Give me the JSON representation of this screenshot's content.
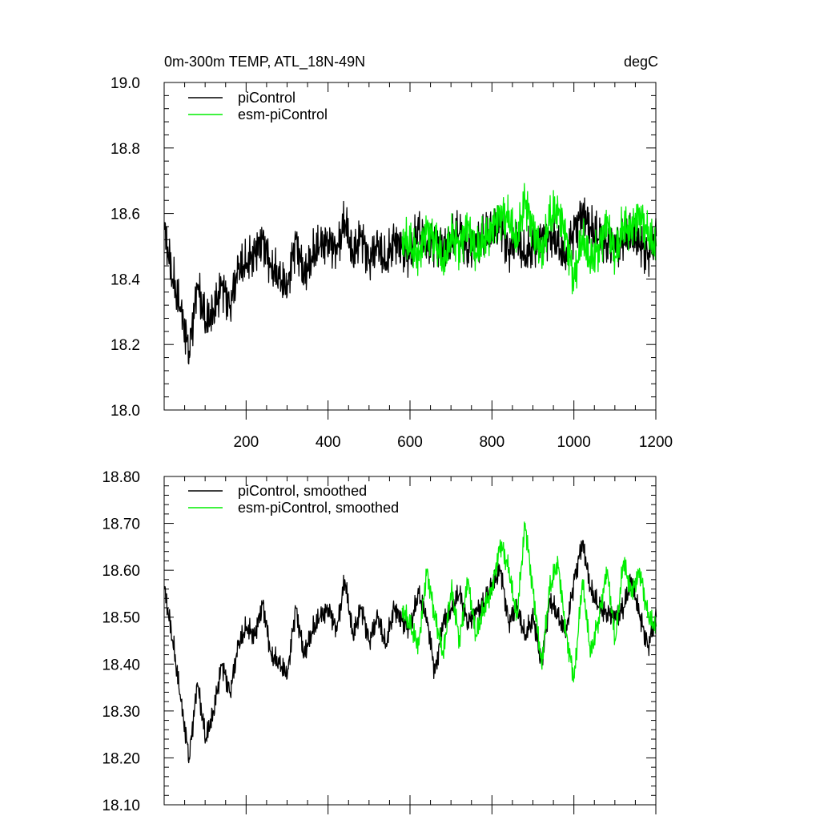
{
  "colors": {
    "control": "#000000",
    "esm": "#00ee00",
    "axis": "#000000",
    "background": "#ffffff"
  },
  "chart_data": [
    {
      "type": "line",
      "title": "0m-300m TEMP, ATL_18N-49N",
      "units": "degC",
      "xlabel": "",
      "ylabel": "",
      "xlim": [
        0,
        1200
      ],
      "ylim": [
        18.0,
        19.0
      ],
      "xticks": [
        200,
        400,
        600,
        800,
        1000,
        1200
      ],
      "yticks": [
        "18.0",
        "18.2",
        "18.4",
        "18.6",
        "18.8",
        "19.0"
      ],
      "legend_position": "top-left",
      "series": [
        {
          "name": "piControl",
          "color": "#000000",
          "x_start": 1,
          "x_step": 20,
          "values": [
            18.55,
            18.4,
            18.3,
            18.18,
            18.38,
            18.27,
            18.3,
            18.38,
            18.32,
            18.43,
            18.45,
            18.48,
            18.52,
            18.44,
            18.4,
            18.38,
            18.52,
            18.41,
            18.47,
            18.5,
            18.52,
            18.48,
            18.58,
            18.47,
            18.53,
            18.46,
            18.5,
            18.45,
            18.52,
            18.49,
            18.48,
            18.55,
            18.5,
            18.52,
            18.49,
            18.52,
            18.54,
            18.49,
            18.51,
            18.53,
            18.55,
            18.56,
            18.49,
            18.52,
            18.47,
            18.5,
            18.52,
            18.54,
            18.5,
            18.47,
            18.55,
            18.6,
            18.56,
            18.52,
            18.51,
            18.5,
            18.52,
            18.54,
            18.5,
            18.48,
            18.53
          ]
        },
        {
          "name": "esm-piControl",
          "color": "#00ee00",
          "x_start": 581,
          "x_step": 20,
          "values": [
            18.53,
            18.5,
            18.47,
            18.55,
            18.52,
            18.45,
            18.53,
            18.5,
            18.56,
            18.48,
            18.52,
            18.55,
            18.6,
            18.58,
            18.52,
            18.64,
            18.55,
            18.48,
            18.58,
            18.62,
            18.52,
            18.4,
            18.53,
            18.45,
            18.5,
            18.57,
            18.47,
            18.56,
            18.55,
            18.6,
            18.53,
            18.5
          ]
        }
      ]
    },
    {
      "type": "line",
      "title": "",
      "xlabel": "",
      "ylabel": "",
      "xlim": [
        0,
        1200
      ],
      "ylim": [
        18.1,
        18.8
      ],
      "yticks": [
        "18.10",
        "18.20",
        "18.30",
        "18.40",
        "18.50",
        "18.60",
        "18.70",
        "18.80"
      ],
      "legend_position": "top-left",
      "series": [
        {
          "name": "piControl, smoothed",
          "color": "#000000",
          "x_start": 1,
          "x_step": 20,
          "values": [
            18.56,
            18.45,
            18.32,
            18.2,
            18.36,
            18.24,
            18.3,
            18.4,
            18.34,
            18.44,
            18.48,
            18.46,
            18.53,
            18.42,
            18.4,
            18.38,
            18.52,
            18.42,
            18.47,
            18.5,
            18.52,
            18.47,
            18.58,
            18.46,
            18.52,
            18.45,
            18.5,
            18.44,
            18.52,
            18.49,
            18.48,
            18.55,
            18.5,
            18.38,
            18.49,
            18.52,
            18.55,
            18.49,
            18.51,
            18.53,
            18.57,
            18.6,
            18.49,
            18.52,
            18.46,
            18.5,
            18.4,
            18.54,
            18.5,
            18.47,
            18.58,
            18.66,
            18.56,
            18.52,
            18.51,
            18.5,
            18.52,
            18.58,
            18.5,
            18.44,
            18.5
          ]
        },
        {
          "name": "esm-piControl, smoothed",
          "color": "#00ee00",
          "x_start": 581,
          "x_step": 20,
          "values": [
            18.52,
            18.48,
            18.44,
            18.6,
            18.5,
            18.42,
            18.56,
            18.45,
            18.58,
            18.46,
            18.52,
            18.56,
            18.66,
            18.6,
            18.5,
            18.7,
            18.55,
            18.4,
            18.56,
            18.62,
            18.46,
            18.37,
            18.58,
            18.42,
            18.5,
            18.6,
            18.45,
            18.62,
            18.55,
            18.6,
            18.5,
            18.48
          ]
        }
      ]
    }
  ]
}
